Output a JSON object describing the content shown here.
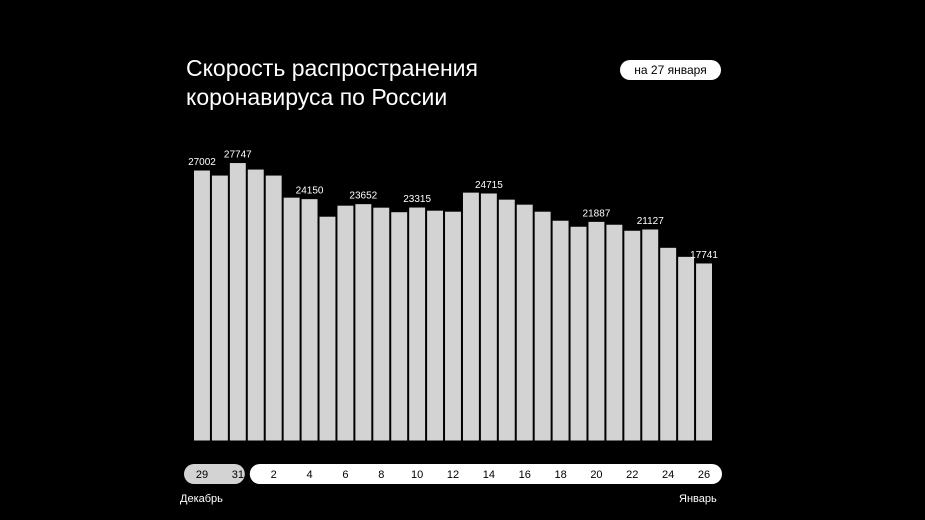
{
  "header": {
    "title_line1": "Скорость распространения",
    "title_line2": "коронавируса по России",
    "date_badge": "на 27 января"
  },
  "months": {
    "start": "Декабрь",
    "end": "Январь"
  },
  "colors": {
    "background": "#000000",
    "bar": "#d3d3d3",
    "bar_outline": "#000000",
    "pill_december": "#d3d3d3",
    "pill_january": "#ffffff",
    "text": "#ffffff"
  },
  "chart_data": {
    "type": "bar",
    "title": "Скорость распространения коронавируса по России",
    "categories": [
      "29",
      "30",
      "31",
      "1",
      "2",
      "3",
      "4",
      "5",
      "6",
      "7",
      "8",
      "9",
      "10",
      "11",
      "12",
      "13",
      "14",
      "15",
      "16",
      "17",
      "18",
      "19",
      "20",
      "21",
      "22",
      "23",
      "24",
      "25",
      "26"
    ],
    "tick_labels": [
      "29",
      "",
      "31",
      "",
      "2",
      "",
      "4",
      "",
      "6",
      "",
      "8",
      "",
      "10",
      "",
      "12",
      "",
      "14",
      "",
      "16",
      "",
      "18",
      "",
      "20",
      "",
      "22",
      "",
      "24",
      "",
      "26"
    ],
    "month_of_category": [
      "Декабрь",
      "Декабрь",
      "Декабрь",
      "Январь",
      "Январь",
      "Январь",
      "Январь",
      "Январь",
      "Январь",
      "Январь",
      "Январь",
      "Январь",
      "Январь",
      "Январь",
      "Январь",
      "Январь",
      "Январь",
      "Январь",
      "Январь",
      "Январь",
      "Январь",
      "Январь",
      "Январь",
      "Январь",
      "Январь",
      "Январь",
      "Январь",
      "Январь",
      "Январь"
    ],
    "values": [
      27002,
      26500,
      27747,
      27100,
      26500,
      24300,
      24150,
      22400,
      23500,
      23652,
      23300,
      22850,
      23315,
      23000,
      22900,
      24800,
      24715,
      24100,
      23600,
      22900,
      22000,
      21400,
      21887,
      21600,
      21000,
      21127,
      19300,
      18400,
      17741
    ],
    "data_labels": [
      "27002",
      "",
      "27747",
      "",
      "",
      "",
      "24150",
      "",
      "",
      "23652",
      "",
      "",
      "23315",
      "",
      "",
      "",
      "24715",
      "",
      "",
      "",
      "",
      "",
      "21887",
      "",
      "",
      "21127",
      "",
      "",
      "17741"
    ],
    "ylim": [
      0,
      28500
    ],
    "grid": false,
    "legend": "none"
  }
}
